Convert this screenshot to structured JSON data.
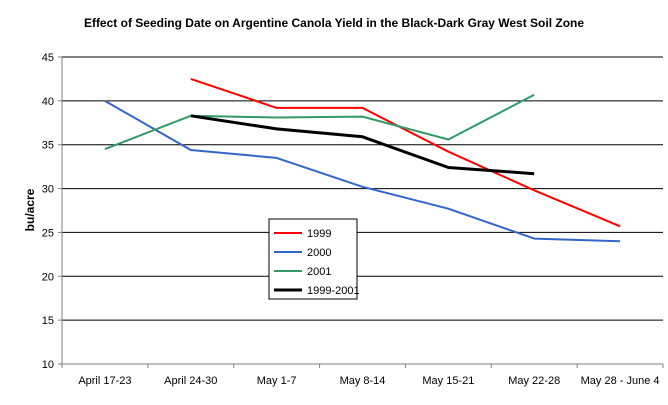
{
  "chart_data": {
    "type": "line",
    "title": "Effect of Seeding Date on Argentine Canola Yield in the Black-Dark Gray West Soil Zone",
    "xlabel": "",
    "ylabel": "bu/acre",
    "ylim": [
      10,
      45
    ],
    "yticks": [
      10,
      15,
      20,
      25,
      30,
      35,
      40,
      45
    ],
    "grid": "horizontal",
    "legend_position": "center",
    "categories": [
      "April 17-23",
      "April 24-30",
      "May 1-7",
      "May 8-14",
      "May 15-21",
      "May 22-28",
      "May 28 - June 4"
    ],
    "series": [
      {
        "name": "1999",
        "color": "#ff0000",
        "values": [
          null,
          42.5,
          39.2,
          39.2,
          34.2,
          29.8,
          25.7
        ]
      },
      {
        "name": "2000",
        "color": "#3366cc",
        "values": [
          40.0,
          34.4,
          33.5,
          30.2,
          27.7,
          24.3,
          24.0
        ]
      },
      {
        "name": "2001",
        "color": "#339966",
        "values": [
          34.5,
          38.3,
          38.1,
          38.2,
          35.6,
          40.7,
          null
        ]
      },
      {
        "name": "1999-2001",
        "color": "#000000",
        "values": [
          null,
          38.3,
          36.8,
          35.9,
          32.4,
          31.7,
          null
        ]
      }
    ]
  }
}
